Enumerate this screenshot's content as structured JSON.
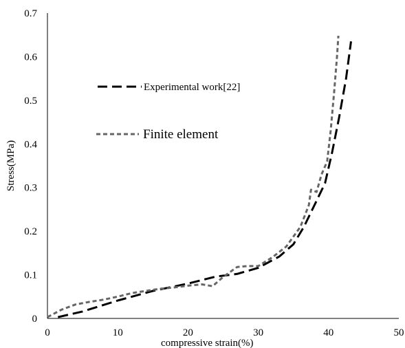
{
  "chart_data": {
    "type": "line",
    "xlabel": "compressive strain(%)",
    "ylabel": "Stress(MPa)",
    "xlim": [
      0,
      50
    ],
    "ylim": [
      0,
      0.7
    ],
    "x_ticks": [
      "0",
      "10",
      "20",
      "30",
      "40",
      "50"
    ],
    "y_ticks": [
      "0",
      "0.1",
      "0.2",
      "0.3",
      "0.4",
      "0.5",
      "0.6",
      "0.7"
    ],
    "grid": false,
    "legend_position": "upper-left inside plot",
    "series": [
      {
        "name": "Experimental work[22]",
        "color": "#000000",
        "style": "long-dash",
        "x": [
          1.5,
          5,
          10,
          15,
          20,
          24,
          27,
          30,
          33,
          35,
          36.5,
          38,
          39.5,
          40.5,
          41.5,
          42.5,
          43.2
        ],
        "y": [
          0.003,
          0.016,
          0.041,
          0.063,
          0.08,
          0.096,
          0.102,
          0.116,
          0.142,
          0.17,
          0.21,
          0.26,
          0.31,
          0.38,
          0.46,
          0.55,
          0.635
        ]
      },
      {
        "name": "Finite element",
        "color": "#666666",
        "style": "short-dash",
        "x": [
          0,
          2,
          4,
          6,
          8,
          10,
          12,
          14,
          16,
          18,
          20,
          22,
          23.5,
          25,
          27,
          28.5,
          30,
          32,
          34,
          36,
          37.2,
          37.5,
          38.3,
          39,
          39.8,
          40.3,
          40.8,
          41.2,
          41.4
        ],
        "y": [
          0.003,
          0.02,
          0.032,
          0.038,
          0.043,
          0.05,
          0.058,
          0.063,
          0.068,
          0.071,
          0.075,
          0.078,
          0.074,
          0.095,
          0.118,
          0.12,
          0.12,
          0.14,
          0.165,
          0.21,
          0.26,
          0.295,
          0.29,
          0.33,
          0.36,
          0.43,
          0.52,
          0.6,
          0.648
        ]
      }
    ]
  }
}
